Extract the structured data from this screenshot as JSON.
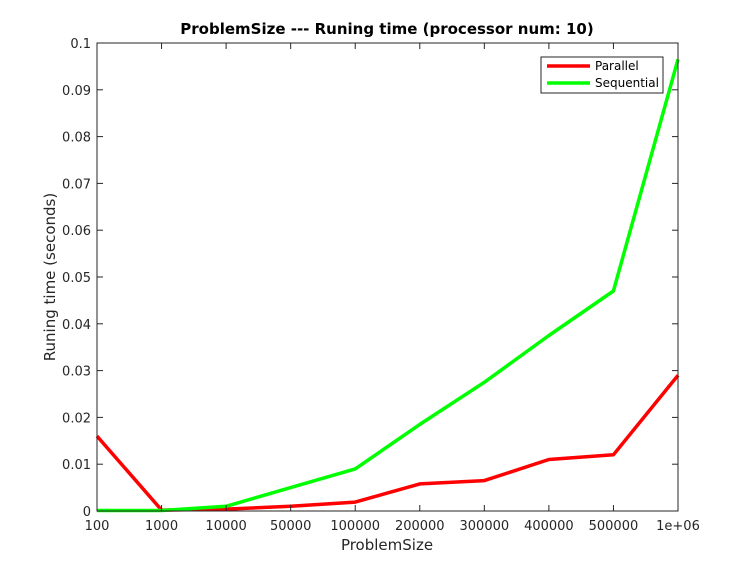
{
  "chart_data": {
    "type": "line",
    "title": "ProblemSize --- Runing time (processor num: 10)",
    "xlabel": "ProblemSize",
    "ylabel": "Runing time (seconds)",
    "categories": [
      "100",
      "1000",
      "10000",
      "50000",
      "100000",
      "200000",
      "300000",
      "400000",
      "500000",
      "1e+06"
    ],
    "ylim": [
      0,
      0.1
    ],
    "yticks": [
      "0",
      "0.01",
      "0.02",
      "0.03",
      "0.04",
      "0.05",
      "0.06",
      "0.07",
      "0.08",
      "0.09",
      "0.1"
    ],
    "ytick_values": [
      0,
      0.01,
      0.02,
      0.03,
      0.04,
      0.05,
      0.06,
      0.07,
      0.08,
      0.09,
      0.1
    ],
    "grid": false,
    "legend_position": "top-right",
    "series": [
      {
        "name": "Parallel",
        "color": "#ff0000",
        "values": [
          0.016,
          0.0002,
          0.0004,
          0.001,
          0.0019,
          0.0058,
          0.0065,
          0.011,
          0.012,
          0.029
        ]
      },
      {
        "name": "Sequential",
        "color": "#00ff00",
        "values": [
          0.0001,
          0.0001,
          0.001,
          0.005,
          0.009,
          0.0185,
          0.0275,
          0.0375,
          0.047,
          0.0965
        ]
      }
    ]
  }
}
